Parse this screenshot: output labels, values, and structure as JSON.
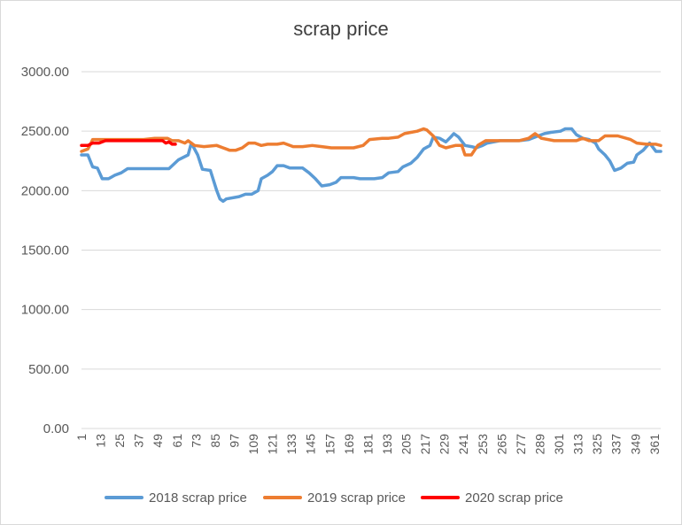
{
  "chart_data": {
    "type": "line",
    "title": "scrap price",
    "xlabel": "",
    "ylabel": "",
    "ylim": [
      0,
      3000
    ],
    "xlim": [
      1,
      365
    ],
    "y_ticks": [
      "0.00",
      "500.00",
      "1000.00",
      "1500.00",
      "2000.00",
      "2500.00",
      "3000.00"
    ],
    "x_ticks": [
      "1",
      "13",
      "25",
      "37",
      "49",
      "61",
      "73",
      "85",
      "97",
      "109",
      "121",
      "133",
      "145",
      "157",
      "169",
      "181",
      "193",
      "205",
      "217",
      "229",
      "241",
      "253",
      "265",
      "277",
      "289",
      "301",
      "313",
      "325",
      "337",
      "349",
      "361"
    ],
    "grid": "horizontal",
    "legend_position": "bottom",
    "series": [
      {
        "name": "2018 scrap price",
        "color": "#5b9bd5",
        "points": [
          [
            1,
            2300
          ],
          [
            5,
            2300
          ],
          [
            8,
            2200
          ],
          [
            11,
            2190
          ],
          [
            14,
            2100
          ],
          [
            18,
            2100
          ],
          [
            22,
            2130
          ],
          [
            26,
            2150
          ],
          [
            30,
            2185
          ],
          [
            40,
            2185
          ],
          [
            52,
            2185
          ],
          [
            56,
            2185
          ],
          [
            58,
            2210
          ],
          [
            62,
            2260
          ],
          [
            68,
            2300
          ],
          [
            70,
            2400
          ],
          [
            74,
            2300
          ],
          [
            77,
            2180
          ],
          [
            82,
            2170
          ],
          [
            86,
            2000
          ],
          [
            88,
            1930
          ],
          [
            90,
            1910
          ],
          [
            92,
            1930
          ],
          [
            100,
            1950
          ],
          [
            104,
            1970
          ],
          [
            108,
            1970
          ],
          [
            112,
            2000
          ],
          [
            114,
            2100
          ],
          [
            118,
            2130
          ],
          [
            121,
            2160
          ],
          [
            124,
            2210
          ],
          [
            128,
            2210
          ],
          [
            132,
            2190
          ],
          [
            140,
            2190
          ],
          [
            144,
            2150
          ],
          [
            148,
            2100
          ],
          [
            152,
            2040
          ],
          [
            157,
            2050
          ],
          [
            161,
            2070
          ],
          [
            164,
            2110
          ],
          [
            172,
            2110
          ],
          [
            176,
            2100
          ],
          [
            185,
            2100
          ],
          [
            190,
            2110
          ],
          [
            194,
            2150
          ],
          [
            200,
            2160
          ],
          [
            203,
            2200
          ],
          [
            208,
            2230
          ],
          [
            212,
            2280
          ],
          [
            216,
            2350
          ],
          [
            220,
            2380
          ],
          [
            222,
            2450
          ],
          [
            226,
            2440
          ],
          [
            230,
            2410
          ],
          [
            233,
            2450
          ],
          [
            235,
            2480
          ],
          [
            238,
            2450
          ],
          [
            242,
            2380
          ],
          [
            246,
            2370
          ],
          [
            249,
            2360
          ],
          [
            253,
            2380
          ],
          [
            256,
            2400
          ],
          [
            260,
            2410
          ],
          [
            264,
            2420
          ],
          [
            270,
            2420
          ],
          [
            276,
            2420
          ],
          [
            282,
            2430
          ],
          [
            288,
            2460
          ],
          [
            292,
            2480
          ],
          [
            296,
            2490
          ],
          [
            302,
            2500
          ],
          [
            305,
            2520
          ],
          [
            309,
            2520
          ],
          [
            312,
            2470
          ],
          [
            316,
            2440
          ],
          [
            320,
            2430
          ],
          [
            324,
            2400
          ],
          [
            326,
            2350
          ],
          [
            330,
            2300
          ],
          [
            333,
            2250
          ],
          [
            336,
            2170
          ],
          [
            340,
            2190
          ],
          [
            344,
            2230
          ],
          [
            348,
            2240
          ],
          [
            350,
            2300
          ],
          [
            354,
            2340
          ],
          [
            358,
            2400
          ],
          [
            362,
            2330
          ],
          [
            365,
            2330
          ]
        ]
      },
      {
        "name": "2019 scrap price",
        "color": "#ed7d31",
        "points": [
          [
            1,
            2330
          ],
          [
            5,
            2350
          ],
          [
            7,
            2400
          ],
          [
            8,
            2430
          ],
          [
            15,
            2430
          ],
          [
            25,
            2430
          ],
          [
            40,
            2430
          ],
          [
            47,
            2440
          ],
          [
            55,
            2440
          ],
          [
            58,
            2420
          ],
          [
            62,
            2420
          ],
          [
            66,
            2400
          ],
          [
            68,
            2420
          ],
          [
            72,
            2380
          ],
          [
            78,
            2370
          ],
          [
            86,
            2380
          ],
          [
            90,
            2360
          ],
          [
            94,
            2340
          ],
          [
            98,
            2340
          ],
          [
            102,
            2360
          ],
          [
            106,
            2400
          ],
          [
            110,
            2400
          ],
          [
            114,
            2380
          ],
          [
            118,
            2390
          ],
          [
            124,
            2390
          ],
          [
            128,
            2400
          ],
          [
            134,
            2370
          ],
          [
            140,
            2370
          ],
          [
            146,
            2380
          ],
          [
            152,
            2370
          ],
          [
            158,
            2360
          ],
          [
            172,
            2360
          ],
          [
            178,
            2380
          ],
          [
            182,
            2430
          ],
          [
            190,
            2440
          ],
          [
            194,
            2440
          ],
          [
            200,
            2450
          ],
          [
            204,
            2480
          ],
          [
            208,
            2490
          ],
          [
            212,
            2500
          ],
          [
            216,
            2520
          ],
          [
            218,
            2510
          ],
          [
            222,
            2460
          ],
          [
            226,
            2380
          ],
          [
            230,
            2360
          ],
          [
            236,
            2380
          ],
          [
            240,
            2380
          ],
          [
            242,
            2300
          ],
          [
            246,
            2300
          ],
          [
            250,
            2380
          ],
          [
            255,
            2420
          ],
          [
            264,
            2420
          ],
          [
            276,
            2420
          ],
          [
            282,
            2440
          ],
          [
            286,
            2480
          ],
          [
            288,
            2460
          ],
          [
            290,
            2440
          ],
          [
            298,
            2420
          ],
          [
            304,
            2420
          ],
          [
            312,
            2420
          ],
          [
            316,
            2440
          ],
          [
            320,
            2420
          ],
          [
            326,
            2420
          ],
          [
            330,
            2460
          ],
          [
            338,
            2460
          ],
          [
            346,
            2430
          ],
          [
            350,
            2400
          ],
          [
            356,
            2390
          ],
          [
            362,
            2390
          ],
          [
            365,
            2380
          ]
        ]
      },
      {
        "name": "2020 scrap price",
        "color": "#ff0000",
        "points": [
          [
            1,
            2380
          ],
          [
            5,
            2380
          ],
          [
            8,
            2400
          ],
          [
            12,
            2400
          ],
          [
            16,
            2420
          ],
          [
            25,
            2420
          ],
          [
            40,
            2420
          ],
          [
            52,
            2420
          ],
          [
            54,
            2400
          ],
          [
            56,
            2410
          ],
          [
            58,
            2390
          ],
          [
            60,
            2390
          ]
        ]
      }
    ]
  }
}
